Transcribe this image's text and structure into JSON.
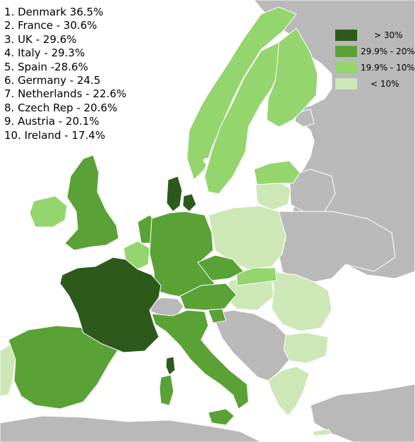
{
  "colors": {
    "water": "#ffffff",
    "no_data": "#b9b9b9",
    "gt30": "#2d5a1b",
    "20to29": "#5aa236",
    "10to19": "#94d56e",
    "lt10": "#cde8b6",
    "border": "#ffffff"
  },
  "legend": [
    {
      "label": "> 30%",
      "color": "#2d5a1b"
    },
    {
      "label": "29.9% - 20%",
      "color": "#5aa236"
    },
    {
      "label": "19.9% - 10%",
      "color": "#94d56e"
    },
    {
      "label": "< 10%",
      "color": "#cde8b6"
    }
  ],
  "ranking": [
    "1. Denmark 36.5%",
    "2. France - 30.6%",
    "3. UK - 29.6%",
    "4. Italy - 29.3%",
    "5. Spain -28.6%",
    "6. Germany - 24.5",
    "7. Netherlands - 22.6%",
    "8. Czech Rep - 20.6%",
    "9. Austria - 20.1%",
    "10. Ireland - 17.4%"
  ]
}
